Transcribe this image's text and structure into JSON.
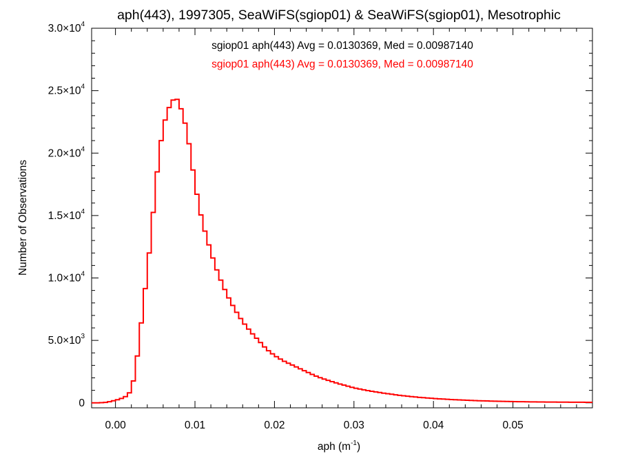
{
  "chart_data": {
    "type": "line",
    "title": "aph(443), 1997305, SeaWiFS(sgiop01) & SeaWiFS(sgiop01), Mesotrophic",
    "xlabel": "aph (m",
    "xlabel_sup": "-1",
    "xlabel_end": ")",
    "ylabel": "Number of Observations",
    "xlim": [
      -0.003,
      0.06
    ],
    "ylim": [
      -400,
      30000
    ],
    "x_ticks": [
      {
        "value": 0.0,
        "label": "0.00"
      },
      {
        "value": 0.01,
        "label": "0.01"
      },
      {
        "value": 0.02,
        "label": "0.02"
      },
      {
        "value": 0.03,
        "label": "0.03"
      },
      {
        "value": 0.04,
        "label": "0.04"
      },
      {
        "value": 0.05,
        "label": "0.05"
      }
    ],
    "y_ticks": [
      {
        "value": 0,
        "mant": "0",
        "exp": ""
      },
      {
        "value": 5000,
        "mant": "5.0×10",
        "exp": "3"
      },
      {
        "value": 10000,
        "mant": "1.0×10",
        "exp": "4"
      },
      {
        "value": 15000,
        "mant": "1.5×10",
        "exp": "4"
      },
      {
        "value": 20000,
        "mant": "2.0×10",
        "exp": "4"
      },
      {
        "value": 25000,
        "mant": "2.5×10",
        "exp": "4"
      },
      {
        "value": 30000,
        "mant": "3.0×10",
        "exp": "4"
      }
    ],
    "grid": false,
    "annotations": [
      {
        "text": "sgiop01 aph(443) Avg = 0.0130369, Med = 0.00987140",
        "color": "#000000"
      },
      {
        "text": "sgiop01 aph(443) Avg = 0.0130369, Med = 0.00987140",
        "color": "#ff0000"
      }
    ],
    "series": [
      {
        "color": "#ff0000",
        "x": [
          -0.003,
          -0.002,
          -0.001,
          0.0,
          0.001,
          0.0015,
          0.002,
          0.0025,
          0.003,
          0.0035,
          0.004,
          0.0045,
          0.005,
          0.0055,
          0.006,
          0.0065,
          0.007,
          0.0075,
          0.008,
          0.0085,
          0.009,
          0.0095,
          0.01,
          0.0105,
          0.011,
          0.0115,
          0.012,
          0.0125,
          0.013,
          0.014,
          0.015,
          0.016,
          0.017,
          0.018,
          0.019,
          0.02,
          0.021,
          0.022,
          0.023,
          0.024,
          0.025,
          0.026,
          0.028,
          0.03,
          0.032,
          0.034,
          0.036,
          0.038,
          0.04,
          0.042,
          0.044,
          0.046,
          0.048,
          0.05,
          0.052,
          0.055,
          0.06
        ],
        "y": [
          0,
          0,
          50,
          200,
          400,
          600,
          1000,
          2500,
          5000,
          7800,
          10500,
          13500,
          17000,
          20000,
          22000,
          23300,
          24000,
          24500,
          24100,
          23000,
          21800,
          19700,
          17600,
          15800,
          14300,
          13200,
          12100,
          11100,
          10200,
          8700,
          7500,
          6500,
          5700,
          5000,
          4300,
          3800,
          3400,
          3100,
          2800,
          2500,
          2200,
          1950,
          1550,
          1200,
          950,
          750,
          580,
          450,
          350,
          270,
          210,
          160,
          130,
          100,
          80,
          60,
          40
        ]
      }
    ]
  }
}
